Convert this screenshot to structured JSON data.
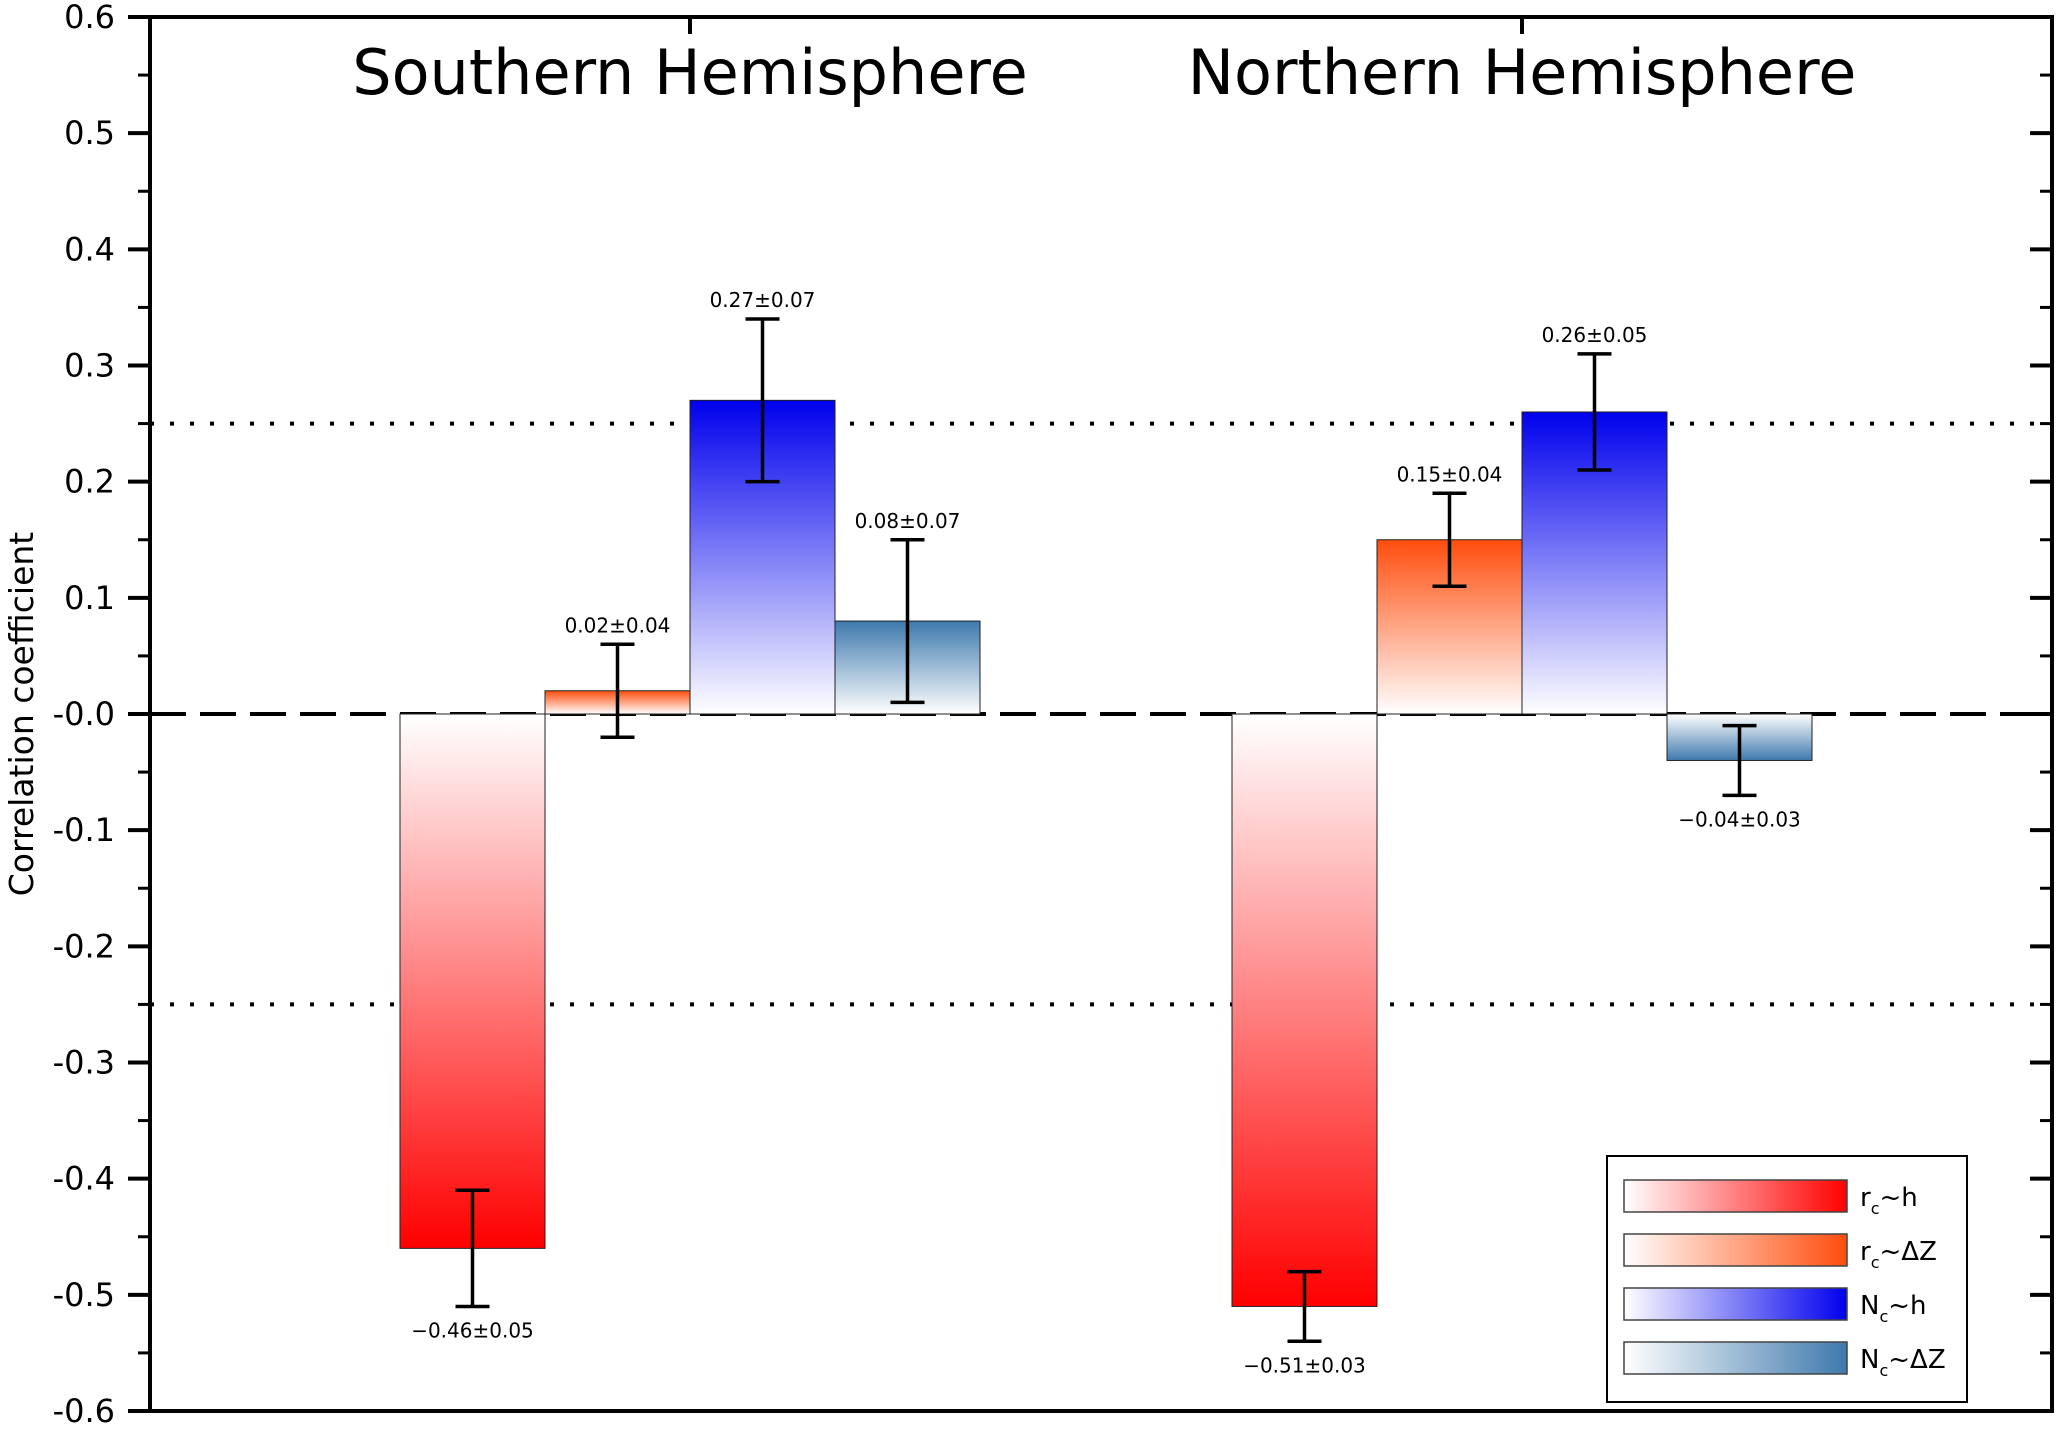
{
  "chart_data": {
    "type": "bar",
    "ylabel": "Correlation coefficient",
    "ylim": [
      -0.6,
      0.6
    ],
    "yticks": [
      0.6,
      0.5,
      0.4,
      0.3,
      0.2,
      0.1,
      0.0,
      -0.1,
      -0.2,
      -0.3,
      -0.4,
      -0.5,
      -0.6
    ],
    "ytick_labels": [
      "0.6",
      "0.5",
      "0.4",
      "0.3",
      "0.2",
      "0.1",
      "-0.0",
      "-0.1",
      "-0.2",
      "-0.3",
      "-0.4",
      "-0.5",
      "-0.6"
    ],
    "groups": [
      {
        "title": "Southern Hemisphere",
        "bars": [
          {
            "series": "rc~h",
            "value": -0.46,
            "error": 0.05,
            "label": "−0.46±0.05"
          },
          {
            "series": "rc~ΔZ",
            "value": 0.02,
            "error": 0.04,
            "label": "0.02±0.04"
          },
          {
            "series": "Nc~h",
            "value": 0.27,
            "error": 0.07,
            "label": "0.27±0.07"
          },
          {
            "series": "Nc~ΔZ",
            "value": 0.08,
            "error": 0.07,
            "label": "0.08±0.07"
          }
        ]
      },
      {
        "title": "Northern Hemisphere",
        "bars": [
          {
            "series": "rc~h",
            "value": -0.51,
            "error": 0.03,
            "label": "−0.51±0.03"
          },
          {
            "series": "rc~ΔZ",
            "value": 0.15,
            "error": 0.04,
            "label": "0.15±0.04"
          },
          {
            "series": "Nc~h",
            "value": 0.26,
            "error": 0.05,
            "label": "0.26±0.05"
          },
          {
            "series": "Nc~ΔZ",
            "value": -0.04,
            "error": 0.03,
            "label": "−0.04±0.03"
          }
        ]
      }
    ],
    "series": [
      {
        "name": "rc~h",
        "main": "r",
        "sub": "c",
        "rest": "~h",
        "color": "#ff0000"
      },
      {
        "name": "rc~ΔZ",
        "main": "r",
        "sub": "c",
        "rest": "~ΔZ",
        "color": "#ff4d0d"
      },
      {
        "name": "Nc~h",
        "main": "N",
        "sub": "c",
        "rest": "~h",
        "color": "#0000ee"
      },
      {
        "name": "Nc~ΔZ",
        "main": "N",
        "sub": "c",
        "rest": "~ΔZ",
        "color": "#3e79ad"
      }
    ],
    "reference_lines": [
      {
        "y": 0.25,
        "style": "dotted"
      },
      {
        "y": -0.25,
        "style": "dotted"
      },
      {
        "y": 0.0,
        "style": "dashed"
      }
    ],
    "legend_position": "bottom-right",
    "grid": false
  }
}
